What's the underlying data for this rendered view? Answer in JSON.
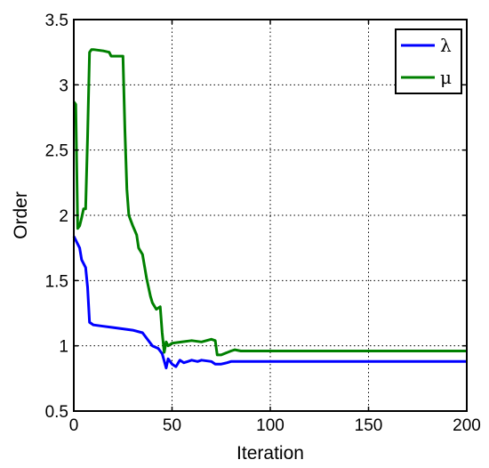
{
  "chart_data": {
    "type": "line",
    "xlabel": "Iteration",
    "ylabel": "Order",
    "xlim": [
      0,
      200
    ],
    "ylim": [
      0.5,
      3.5
    ],
    "xticks": [
      0,
      50,
      100,
      150,
      200
    ],
    "yticks": [
      0.5,
      1,
      1.5,
      2,
      2.5,
      3,
      3.5
    ],
    "xtick_labels": [
      "0",
      "50",
      "100",
      "150",
      "200"
    ],
    "ytick_labels": [
      "0.5",
      "1",
      "1.5",
      "2",
      "2.5",
      "3",
      "3.5"
    ],
    "grid": true,
    "legend_position": "top-right",
    "series": [
      {
        "name": "λ",
        "color": "#0000ff",
        "x": [
          0,
          2,
          3,
          4,
          6,
          7,
          8,
          9,
          10,
          15,
          20,
          25,
          30,
          35,
          40,
          43,
          45,
          47,
          48,
          50,
          52,
          54,
          56,
          58,
          60,
          63,
          65,
          70,
          72,
          75,
          78,
          80,
          85,
          200
        ],
        "y": [
          1.84,
          1.78,
          1.75,
          1.66,
          1.6,
          1.45,
          1.18,
          1.17,
          1.16,
          1.15,
          1.14,
          1.13,
          1.12,
          1.1,
          1.0,
          0.98,
          0.94,
          0.83,
          0.9,
          0.86,
          0.84,
          0.89,
          0.87,
          0.88,
          0.89,
          0.88,
          0.89,
          0.88,
          0.86,
          0.86,
          0.87,
          0.88,
          0.88,
          0.88
        ]
      },
      {
        "name": "μ",
        "color": "#008000",
        "x": [
          0,
          1,
          2,
          3,
          4,
          5,
          6,
          7,
          8,
          9,
          10,
          15,
          18,
          19,
          22,
          24,
          25,
          26,
          27,
          28,
          30,
          32,
          33,
          35,
          37,
          39,
          40,
          42,
          44,
          45,
          46,
          47,
          48,
          50,
          55,
          60,
          65,
          70,
          72,
          73,
          75,
          80,
          82,
          85,
          200
        ],
        "y": [
          2.87,
          2.85,
          1.9,
          1.92,
          1.98,
          2.05,
          2.05,
          2.6,
          3.25,
          3.27,
          3.27,
          3.26,
          3.25,
          3.22,
          3.22,
          3.22,
          3.22,
          2.65,
          2.2,
          2.0,
          1.92,
          1.85,
          1.75,
          1.7,
          1.52,
          1.38,
          1.33,
          1.28,
          1.3,
          1.1,
          0.95,
          1.03,
          1.0,
          1.02,
          1.03,
          1.04,
          1.03,
          1.05,
          1.04,
          0.93,
          0.93,
          0.96,
          0.97,
          0.96,
          0.96
        ]
      }
    ]
  }
}
